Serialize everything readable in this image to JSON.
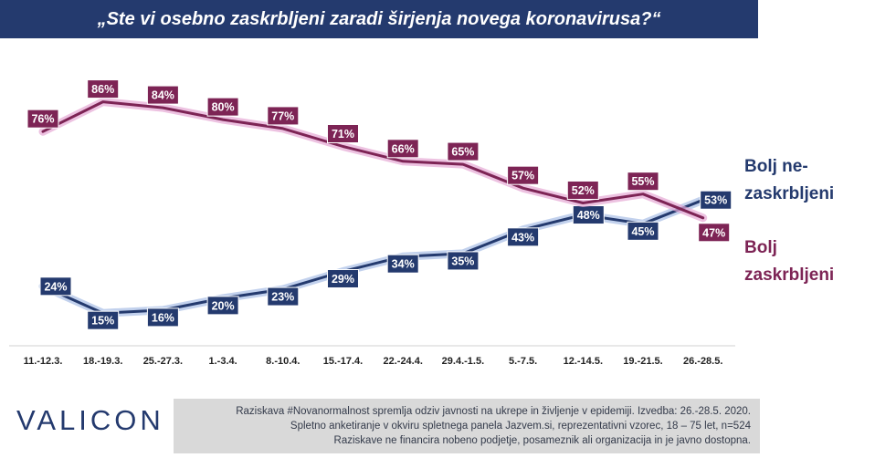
{
  "title": "„Ste vi osebno zaskrbljeni zaradi širjenja novega koronavirusa?“",
  "chart_data": {
    "type": "line",
    "categories": [
      "11.-12.3.",
      "18.-19.3.",
      "25.-27.3.",
      "1.-3.4.",
      "8.-10.4.",
      "15.-17.4.",
      "22.-24.4.",
      "29.4.-1.5.",
      "5.-7.5.",
      "12.-14.5.",
      "19.-21.5.",
      "26.-28.5."
    ],
    "series": [
      {
        "name": "Bolj ne-\nzaskrbljeni",
        "values": [
          24,
          15,
          16,
          20,
          23,
          29,
          34,
          35,
          43,
          48,
          45,
          53
        ],
        "labels": [
          "24%",
          "15%",
          "16%",
          "20%",
          "23%",
          "29%",
          "34%",
          "35%",
          "43%",
          "48%",
          "45%",
          "53%"
        ],
        "color": "#243a6e",
        "glow": "#a8bde6"
      },
      {
        "name": "Bolj\nzaskrbljeni",
        "values": [
          76,
          86,
          84,
          80,
          77,
          71,
          66,
          65,
          57,
          52,
          55,
          47
        ],
        "labels": [
          "76%",
          "86%",
          "84%",
          "80%",
          "77%",
          "71%",
          "66%",
          "65%",
          "57%",
          "52%",
          "55%",
          "47%"
        ],
        "color": "#7d2455",
        "glow": "#e6a8d4"
      }
    ],
    "ylim": [
      8,
      92
    ],
    "grid": false
  },
  "logo": "VALICON",
  "footer": [
    "Raziskava #Novanormalnost spremlja  odziv javnosti  na ukrepe in življenje v epidemiji.  Izvedba: 26.-28.5. 2020.",
    "Spletno anketiranje v okviru spletnega panela Jazvem.si, reprezentativni vzorec, 18 – 75 let, n=524",
    "Raziskave ne financira nobeno podjetje, posameznik ali organizacija in je javno dostopna."
  ]
}
